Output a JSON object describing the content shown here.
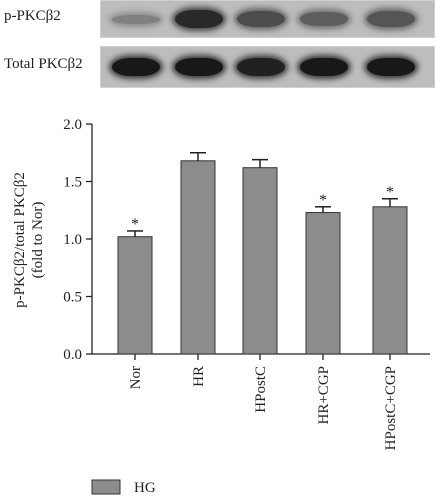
{
  "blots": [
    {
      "label": "p-PKCβ2",
      "band_intensity": [
        0.35,
        0.85,
        0.65,
        0.55,
        0.6
      ],
      "band_spread": [
        0.25,
        0.5,
        0.45,
        0.4,
        0.45
      ]
    },
    {
      "label": "Total PKCβ2",
      "band_intensity": [
        0.95,
        0.95,
        0.9,
        0.95,
        0.95
      ],
      "band_spread": [
        0.45,
        0.45,
        0.45,
        0.45,
        0.45
      ]
    }
  ],
  "chart_data": {
    "type": "bar",
    "categories": [
      "Nor",
      "HR",
      "HPostC",
      "HR+CGP",
      "HPostC+CGP"
    ],
    "series": [
      {
        "name": "HG",
        "values": [
          1.02,
          1.68,
          1.62,
          1.23,
          1.28
        ],
        "errors": [
          0.05,
          0.07,
          0.07,
          0.05,
          0.07
        ],
        "color": "#8c8c8c"
      }
    ],
    "significance": [
      "*",
      "",
      "",
      "*",
      "*"
    ],
    "ylabel_line1": "p-PKCβ2/total PKCβ2",
    "ylabel_line2": "(fold to Nor)",
    "yticks": [
      "0.0",
      "0.5",
      "1.0",
      "1.5",
      "2.0"
    ],
    "ylim": [
      0,
      2.0
    ],
    "grid": false,
    "legend": "bottom-left"
  }
}
